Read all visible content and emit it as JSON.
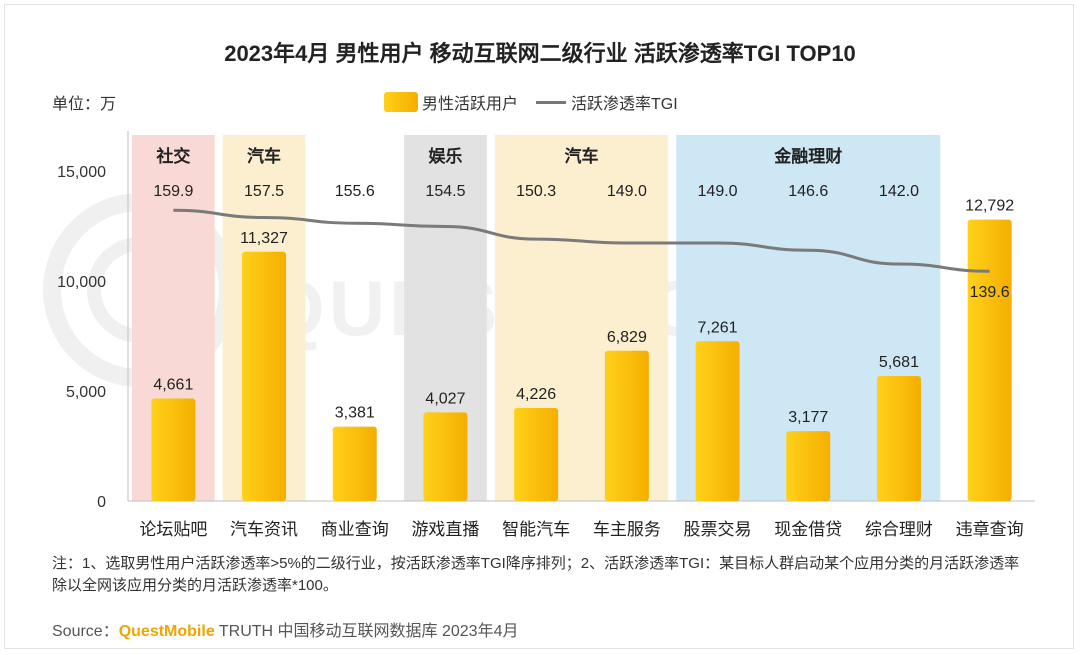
{
  "title": "2023年4月 男性用户 移动互联网二级行业 活跃渗透率TGI TOP10",
  "unit_label": "单位：万",
  "legend": {
    "bar": "男性活跃用户",
    "line": "活跃渗透率TGI"
  },
  "note": "注：1、选取男性用户活跃渗透率>5%的二级行业，按活跃渗透率TGI降序排列；2、活跃渗透率TGI：某目标人群启动某个应用分类的月活跃渗透率除以全网该应用分类的月活跃渗透率*100。",
  "source": {
    "prefix": "Source：",
    "brand": "QuestMobile",
    "suffix": " TRUTH 中国移动互联网数据库 2023年4月"
  },
  "watermark": "QUEST MOBILE",
  "colors": {
    "bar_top": "#ffd11a",
    "bar_bottom": "#f5ae00",
    "line": "#7a7a7a",
    "社交": "#f9d9d6",
    "汽车": "#fcefcf",
    "娱乐": "#e2e2e2",
    "金融理财": "#cde7f5"
  },
  "chart_data": {
    "type": "bar",
    "categories": [
      "论坛贴吧",
      "汽车资讯",
      "商业查询",
      "游戏直播",
      "智能汽车",
      "车主服务",
      "股票交易",
      "现金借贷",
      "综合理财",
      "违章查询"
    ],
    "series": [
      {
        "name": "男性活跃用户",
        "type": "bar",
        "values": [
          4661,
          11327,
          3381,
          4027,
          4226,
          6829,
          7261,
          3177,
          5681,
          12792
        ],
        "labels": [
          "4,661",
          "11,327",
          "3,381",
          "4,027",
          "4,226",
          "6,829",
          "7,261",
          "3,177",
          "5,681",
          "12,792"
        ]
      },
      {
        "name": "活跃渗透率TGI",
        "type": "line",
        "values": [
          159.9,
          157.5,
          155.6,
          154.5,
          150.3,
          149.0,
          149.0,
          146.6,
          142.0,
          139.6
        ],
        "labels": [
          "159.9",
          "157.5",
          "155.6",
          "154.5",
          "150.3",
          "149.0",
          "149.0",
          "146.6",
          "142.0",
          "139.6"
        ]
      }
    ],
    "ylim": [
      0,
      15000
    ],
    "yticks": [
      0,
      5000,
      10000,
      15000
    ],
    "ytick_labels": [
      "0",
      "5,000",
      "10,000",
      "15,000"
    ],
    "groups": [
      {
        "label": "社交",
        "start": 0,
        "end": 0
      },
      {
        "label": "汽车",
        "start": 1,
        "end": 1
      },
      {
        "label": "娱乐",
        "start": 3,
        "end": 3
      },
      {
        "label": "汽车",
        "start": 4,
        "end": 5
      },
      {
        "label": "金融理财",
        "start": 6,
        "end": 8
      }
    ],
    "grid": false,
    "legend_position": "top-center"
  }
}
